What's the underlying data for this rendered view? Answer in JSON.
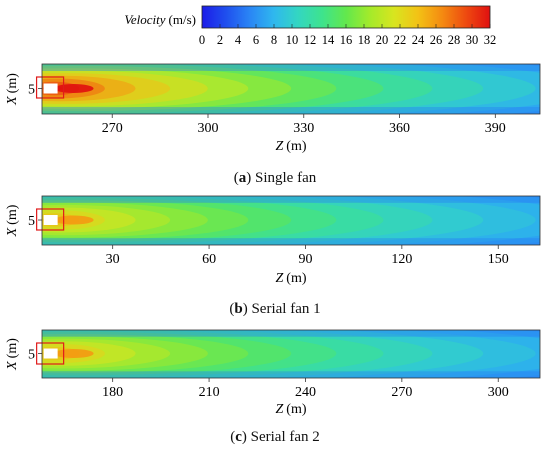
{
  "colorbar": {
    "label_italic": "Velocity",
    "label_unit": "(m/s)",
    "ticks": [
      "0",
      "2",
      "4",
      "6",
      "8",
      "10",
      "12",
      "14",
      "16",
      "18",
      "20",
      "22",
      "24",
      "26",
      "28",
      "30",
      "32"
    ],
    "range": [
      0,
      32
    ],
    "color_stops": [
      "#1c1ce8",
      "#1f4fee",
      "#2a86f5",
      "#2fb8ee",
      "#33d6c2",
      "#3ee38d",
      "#62e84d",
      "#a4ea2a",
      "#d8e51f",
      "#f3c215",
      "#f48b11",
      "#ee4a10",
      "#e01010"
    ]
  },
  "chart_data": [
    {
      "type": "heatmap",
      "panel": "a",
      "caption_letter": "a",
      "caption_text": "Single fan",
      "xlabel": "Z (m)",
      "ylabel": "X (m)",
      "x_ticks": [
        270,
        300,
        330,
        360,
        390
      ],
      "y_ticks": [
        5
      ],
      "xlim": [
        248,
        404
      ],
      "fan_z": 251,
      "jet_peak_velocity": 32,
      "far_field_velocity": 6
    },
    {
      "type": "heatmap",
      "panel": "b",
      "caption_letter": "b",
      "caption_text": "Serial fan 1",
      "xlabel": "Z (m)",
      "ylabel": "X (m)",
      "x_ticks": [
        30,
        60,
        90,
        120,
        150
      ],
      "y_ticks": [
        5
      ],
      "xlim": [
        8,
        163
      ],
      "fan_z": 11,
      "jet_peak_velocity": 26,
      "far_field_velocity": 6
    },
    {
      "type": "heatmap",
      "panel": "c",
      "caption_letter": "c",
      "caption_text": "Serial fan 2",
      "xlabel": "Z (m)",
      "ylabel": "X (m)",
      "x_ticks": [
        180,
        210,
        240,
        270,
        300
      ],
      "y_ticks": [
        5
      ],
      "xlim": [
        158,
        313
      ],
      "fan_z": 161,
      "jet_peak_velocity": 26,
      "far_field_velocity": 6
    }
  ]
}
